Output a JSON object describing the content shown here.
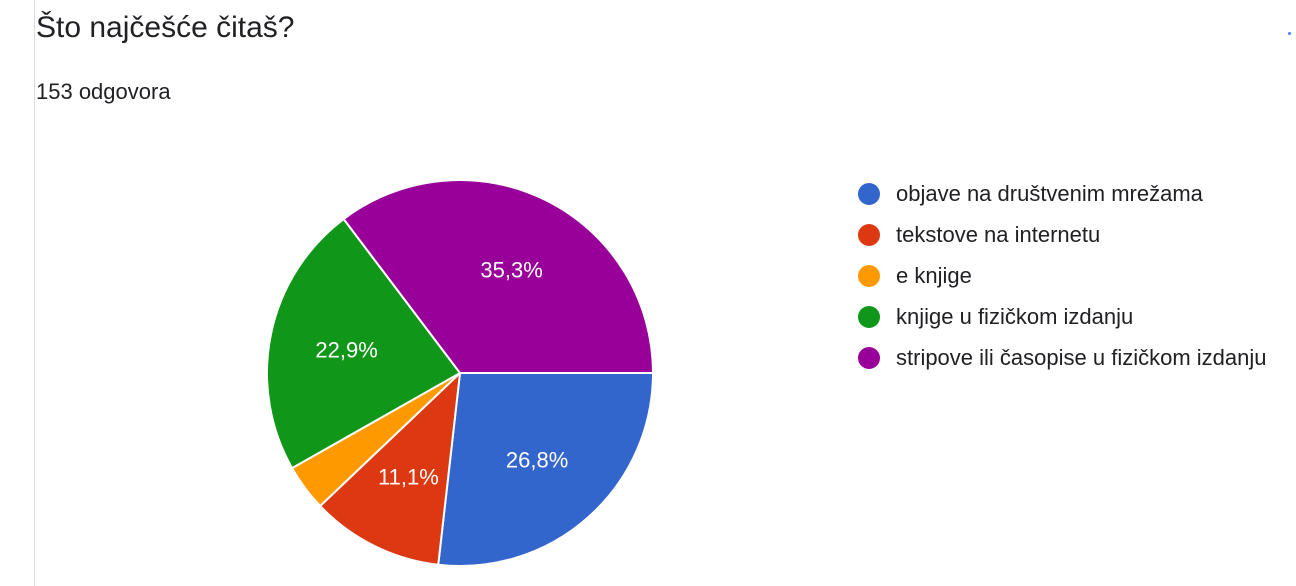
{
  "header": {
    "title": "Što najčešće čitaš?",
    "responses": "153 odgovora"
  },
  "chart_data": {
    "type": "pie",
    "title": "Što najčešće čitaš?",
    "slices": [
      {
        "name": "objave na društvenim mrežama",
        "value": 26.8,
        "label": "26,8%",
        "color": "#3366cc"
      },
      {
        "name": "tekstove na internetu",
        "value": 11.1,
        "label": "11,1%",
        "color": "#dc3912"
      },
      {
        "name": "e knjige",
        "value": 3.9,
        "label": "",
        "color": "#ff9900"
      },
      {
        "name": "knjige u fizičkom izdanju",
        "value": 22.9,
        "label": "22,9%",
        "color": "#109618"
      },
      {
        "name": "stripove ili časopise u fizičkom izdanju",
        "value": 35.3,
        "label": "35,3%",
        "color": "#990099"
      }
    ],
    "legend_position": "right"
  }
}
